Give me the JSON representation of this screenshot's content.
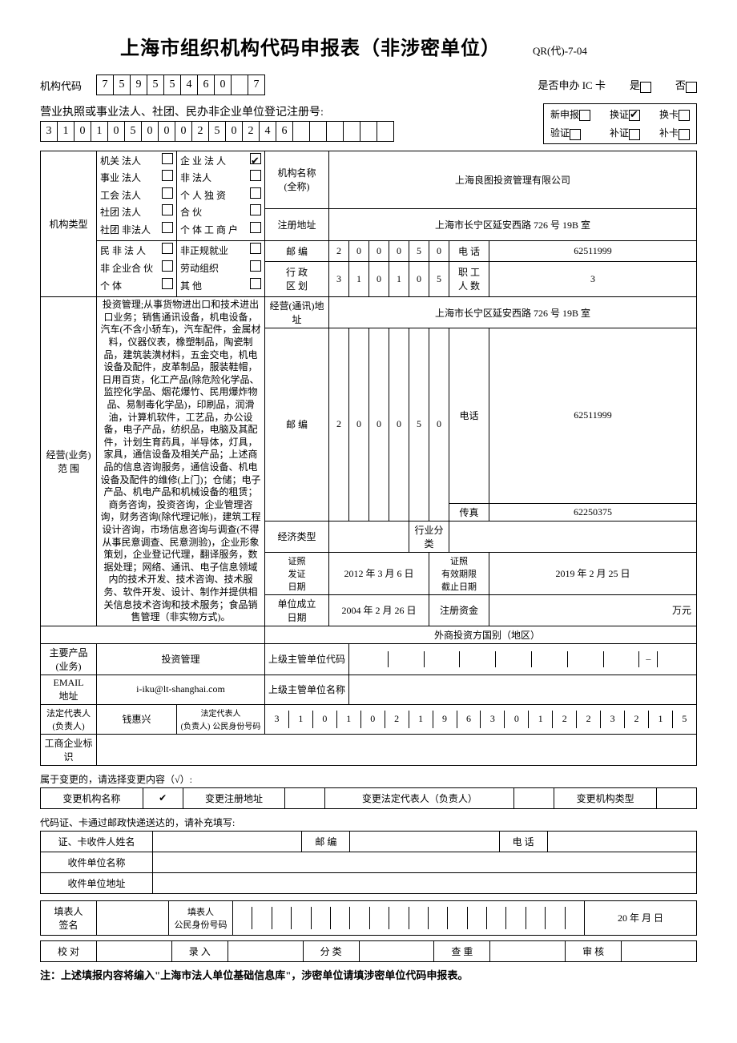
{
  "header": {
    "title": "上海市组织机构代码申报表（非涉密单位）",
    "doc_code": "QR(代)-7-04"
  },
  "org_code": {
    "label": "机构代码",
    "cells": [
      "7",
      "5",
      "9",
      "5",
      "5",
      "4",
      "6",
      "0",
      "",
      "7"
    ]
  },
  "ic_card": {
    "label": "是否申办 IC 卡",
    "yes": "是",
    "no": "否"
  },
  "reg_number": {
    "label": "营业执照或事业法人、社团、民办非企业单位登记注册号:",
    "cells": [
      "3",
      "1",
      "0",
      "1",
      "0",
      "5",
      "0",
      "0",
      "0",
      "2",
      "5",
      "0",
      "2",
      "4",
      "6",
      "",
      "",
      "",
      "",
      "",
      ""
    ]
  },
  "app_type": {
    "new": "新申报",
    "renew": "换证",
    "recard": "换卡",
    "verify": "验证",
    "supp_cert": "补证",
    "supp_card": "补卡",
    "checked": "renew"
  },
  "org_type": {
    "label": "机构类型",
    "col1": [
      "机关  法人",
      "事业  法人",
      "工会  法人",
      "社团 法人",
      "社团 非法人",
      "民 非  法 人",
      "非 企业合  伙",
      "个  体"
    ],
    "col2": [
      "企 业  法 人",
      "非 法人",
      "个 人  独 资",
      "合 伙",
      "个 体  工 商 户",
      "非正规就业",
      "劳动组织",
      "其  他"
    ],
    "checked_col2": 0
  },
  "basic": {
    "name_label": "机构名称\n(全称)",
    "name": "上海良图投资管理有限公司",
    "addr_label": "注册地址",
    "addr": "上海市长宁区延安西路 726 号 19B 室",
    "post_label": "邮  编",
    "post_cells": [
      "2",
      "0",
      "0",
      "0",
      "5",
      "0"
    ],
    "phone_label": "电 话",
    "phone": "62511999",
    "admin_label": "行 政\n区 划",
    "admin_cells": [
      "3",
      "1",
      "0",
      "1",
      "0",
      "5"
    ],
    "staff_label": "职 工\n人 数",
    "staff": "3"
  },
  "business": {
    "label": "经营(业务)\n范 围",
    "text": "投资管理;从事货物进出口和技术进出口业务；销售通讯设备，机电设备，汽车(不含小轿车)，汽车配件，金属材料，仪器仪表，橡塑制品，陶瓷制品，建筑装潢材料，五金交电，机电设备及配件，皮革制品，服装鞋帽，日用百货，化工产品(除危险化学品、监控化学品、烟花爆竹、民用爆炸物品、易制毒化学品)，印刷品，润滑油，计算机软件，工艺品，办公设备，电子产品，纺织品，电脑及其配件，计划生育药具，半导体，灯具，家具，通信设备及相关产品；上述商品的信息咨询服务，通信设备、机电设备及配件的维修(上门)；仓储；电子产品、机电产品和机械设备的租赁；商务咨询，投资咨询，企业管理咨询，财务咨询(除代理记帐)，建筑工程设计咨询，市场信息咨询与调查(不得从事民意调查、民意测验)，企业形象策划，企业登记代理，翻译服务，数据处理；网络、通讯、电子信息领域内的技术开发、技术咨询、技术服务、软件开发、设计、制作并提供相关信息技术咨询和技术服务；食品销售管理（非实物方式)。",
    "comm_addr_label": "经营(通讯)地\n址",
    "comm_addr": "上海市长宁区延安西路 726 号 19B 室",
    "comm_post_label": "邮  编",
    "comm_post_cells": [
      "2",
      "0",
      "0",
      "0",
      "5",
      "0"
    ],
    "comm_phone_label": "电话",
    "comm_phone": "62511999",
    "fax_label": "传真",
    "fax": "62250375",
    "econ_label": "经济类型",
    "industry_label": "行业分类",
    "cert_date_label": "证照\n发证\n日期",
    "cert_date": "2012 年 3 月 6 日",
    "valid_label": "证照\n有效期限\n截止日期",
    "valid_date": "2019 年  2 月 25 日",
    "est_label": "单位成立\n日期",
    "est_date": "2004 年 2 月 26 日",
    "capital_label": "注册资金",
    "capital_unit": "万元",
    "foreign_label": "外商投资方国别（地区）"
  },
  "product": {
    "label": "主要产品\n(业务)",
    "value": "投资管理",
    "sup_code_label": "上级主管单位代码"
  },
  "email": {
    "label": "EMAIL\n地址",
    "value": "i-iku@lt-shanghai.com",
    "sup_name_label": "上级主管单位名称"
  },
  "legal": {
    "label": "法定代表人\n(负责人)",
    "name": "钱惠兴",
    "id_label": "法定代表人\n(负责人)",
    "id_sub": "公民身份号码",
    "id_cells": [
      "3",
      "1",
      "0",
      "1",
      "0",
      "2",
      "1",
      "9",
      "6",
      "3",
      "0",
      "1",
      "2",
      "2",
      "3",
      "2",
      "1",
      "5"
    ]
  },
  "ind_mark": {
    "label": "工商企业标识"
  },
  "change": {
    "title": "属于变更的，请选择变更内容（√）:",
    "opts": [
      "变更机构名称",
      "变更注册地址",
      "变更法定代表人（负责人）",
      "变更机构类型"
    ],
    "checked": 0
  },
  "mail": {
    "title": "代码证、卡通过邮政快递送达的，请补充填写:",
    "recipient": "证、卡收件人姓名",
    "post": "邮  编",
    "phone": "电  话",
    "unit": "收件单位名称",
    "addr": "收件单位地址"
  },
  "filler": {
    "sign_label": "填表人\n签名",
    "id_label": "填表人\n公民身份号码",
    "date_label": "20    年    月    日"
  },
  "workflow": [
    "校  对",
    "录  入",
    "分  类",
    "查  重",
    "审  核"
  ],
  "footnote": "注：上述填报内容将编入\"上海市法人单位基础信息库\"，涉密单位请填涉密单位代码申报表。"
}
